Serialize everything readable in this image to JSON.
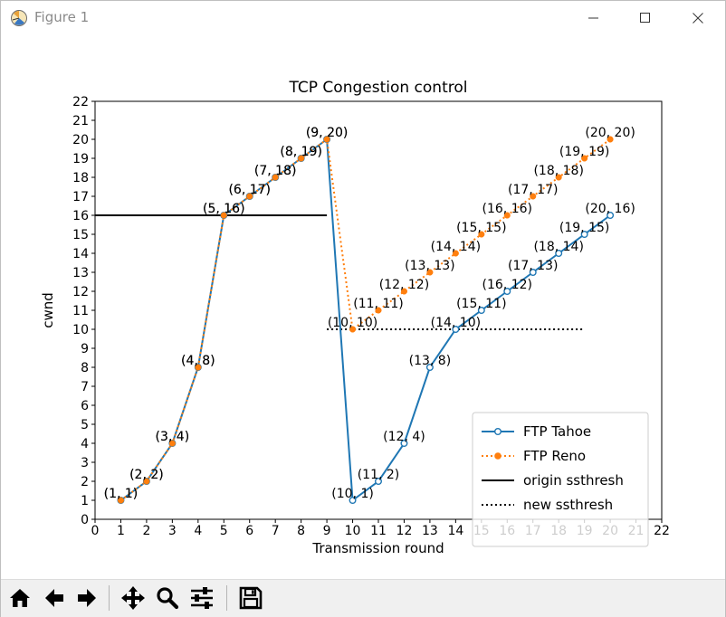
{
  "window": {
    "title": "Figure 1",
    "icons": [
      "app-icon",
      "minimize-icon",
      "maximize-icon",
      "close-icon"
    ]
  },
  "toolbar": {
    "buttons": [
      {
        "name": "home-button",
        "icon": "home-icon"
      },
      {
        "name": "back-button",
        "icon": "arrow-left-icon"
      },
      {
        "name": "forward-button",
        "icon": "arrow-right-icon"
      },
      {
        "name": "pan-button",
        "icon": "move-icon"
      },
      {
        "name": "zoom-button",
        "icon": "magnifier-icon"
      },
      {
        "name": "configure-subplots-button",
        "icon": "sliders-icon"
      },
      {
        "name": "save-button",
        "icon": "floppy-disk-icon"
      }
    ]
  },
  "chart_data": {
    "type": "line",
    "title": "TCP Congestion control",
    "xlabel": "Transmission round",
    "ylabel": "cwnd",
    "xlim": [
      0,
      22
    ],
    "ylim": [
      0,
      22
    ],
    "xticks": [
      0,
      1,
      2,
      3,
      4,
      5,
      6,
      7,
      8,
      9,
      10,
      11,
      12,
      13,
      14,
      15,
      16,
      17,
      18,
      19,
      20,
      21,
      22
    ],
    "yticks": [
      0,
      1,
      2,
      3,
      4,
      5,
      6,
      7,
      8,
      9,
      10,
      11,
      12,
      13,
      14,
      15,
      16,
      17,
      18,
      19,
      20,
      21,
      22
    ],
    "grid": false,
    "legend_position": "lower-right",
    "series": [
      {
        "name": "FTP Tahoe",
        "color": "#1f77b4",
        "style": "solid",
        "marker": "hollow-circle",
        "x": [
          1,
          2,
          3,
          4,
          5,
          6,
          7,
          8,
          9,
          10,
          11,
          12,
          13,
          14,
          15,
          16,
          17,
          18,
          19,
          20
        ],
        "y": [
          1,
          2,
          4,
          8,
          16,
          17,
          18,
          19,
          20,
          1,
          2,
          4,
          8,
          10,
          11,
          12,
          13,
          14,
          15,
          16
        ],
        "point_labels": [
          "(1, 1)",
          "(2, 2)",
          "(3, 4)",
          "(4, 8)",
          "(5, 16)",
          "(6, 17)",
          "(7, 18)",
          "(8, 19)",
          "(9, 20)",
          "(10, 1)",
          "(11, 2)",
          "(12, 4)",
          "(13, 8)",
          "(14, 10)",
          "(15, 11)",
          "(16, 12)",
          "(17, 13)",
          "(18, 14)",
          "(19, 15)",
          "(20, 16)"
        ]
      },
      {
        "name": "FTP Reno",
        "color": "#ff7f0e",
        "style": "dotted",
        "marker": "filled-dot",
        "x": [
          1,
          2,
          3,
          4,
          5,
          6,
          7,
          8,
          9,
          10,
          11,
          12,
          13,
          14,
          15,
          16,
          17,
          18,
          19,
          20
        ],
        "y": [
          1,
          2,
          4,
          8,
          16,
          17,
          18,
          19,
          20,
          10,
          11,
          12,
          13,
          14,
          15,
          16,
          17,
          18,
          19,
          20
        ],
        "point_labels": [
          "(1, 1)",
          "(2, 2)",
          "(3, 4)",
          "(4, 8)",
          "(5, 16)",
          "(6, 17)",
          "(7, 18)",
          "(8, 19)",
          "(9, 20)",
          "(10, 10)",
          "(11, 11)",
          "(12, 12)",
          "(13, 13)",
          "(14, 14)",
          "(15, 15)",
          "(16, 16)",
          "(17, 17)",
          "(18, 18)",
          "(19, 19)",
          "(20, 20)"
        ]
      },
      {
        "name": "origin ssthresh",
        "color": "#000000",
        "style": "solid",
        "x": [
          0,
          9
        ],
        "y": [
          16,
          16
        ]
      },
      {
        "name": "new ssthresh",
        "color": "#000000",
        "style": "dotted",
        "x": [
          9,
          19
        ],
        "y": [
          10,
          10
        ]
      }
    ]
  }
}
